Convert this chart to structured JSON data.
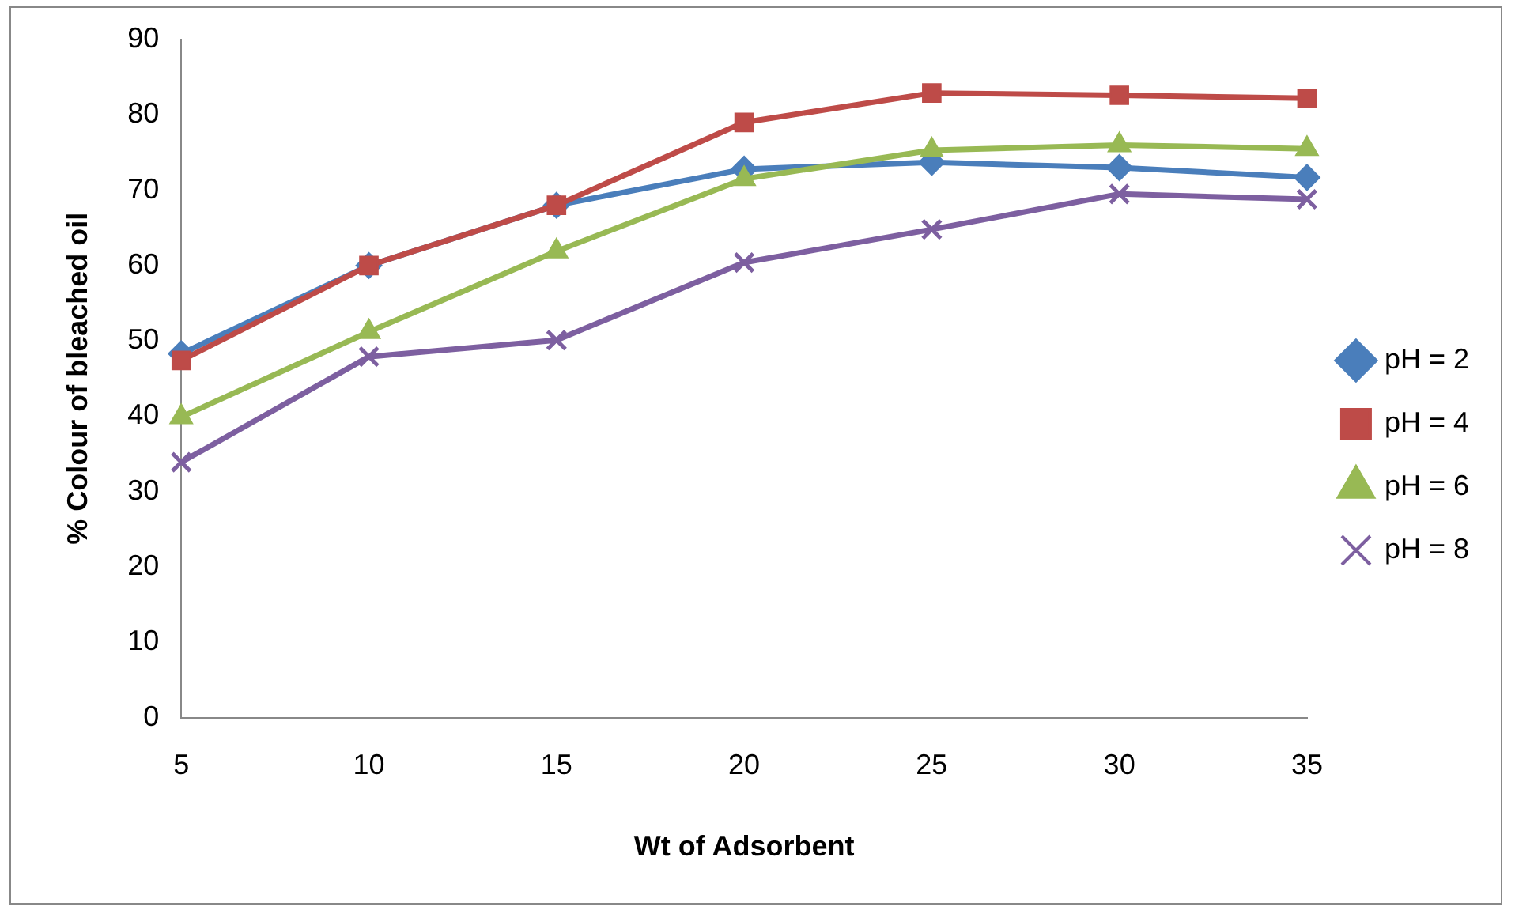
{
  "chart_data": {
    "type": "line",
    "xlabel": "Wt of Adsorbent",
    "ylabel": "% Colour of bleached oil",
    "categories": [
      "5",
      "10",
      "15",
      "20",
      "25",
      "30",
      "35"
    ],
    "ylim": [
      0,
      90
    ],
    "yticks": [
      0,
      10,
      20,
      30,
      40,
      50,
      60,
      70,
      80,
      90
    ],
    "grid": false,
    "legend": "right",
    "line_style": "solid",
    "series": [
      {
        "name": "pH = 2",
        "color": "#4a7ebb",
        "marker": "diamond",
        "values": [
          48.3,
          60,
          68,
          72.8,
          73.7,
          73,
          71.7
        ]
      },
      {
        "name": "pH = 4",
        "color": "#be4b48",
        "marker": "square",
        "values": [
          47.4,
          60,
          68,
          79,
          82.9,
          82.6,
          82.2
        ]
      },
      {
        "name": "pH = 6",
        "color": "#98b954",
        "marker": "triangle",
        "values": [
          39.9,
          51.2,
          61.9,
          71.5,
          75.3,
          76,
          75.5
        ]
      },
      {
        "name": "pH = 8",
        "color": "#7d5fa0",
        "marker": "cross",
        "values": [
          33.9,
          47.9,
          50.1,
          60.4,
          64.8,
          69.5,
          68.8
        ]
      }
    ]
  }
}
